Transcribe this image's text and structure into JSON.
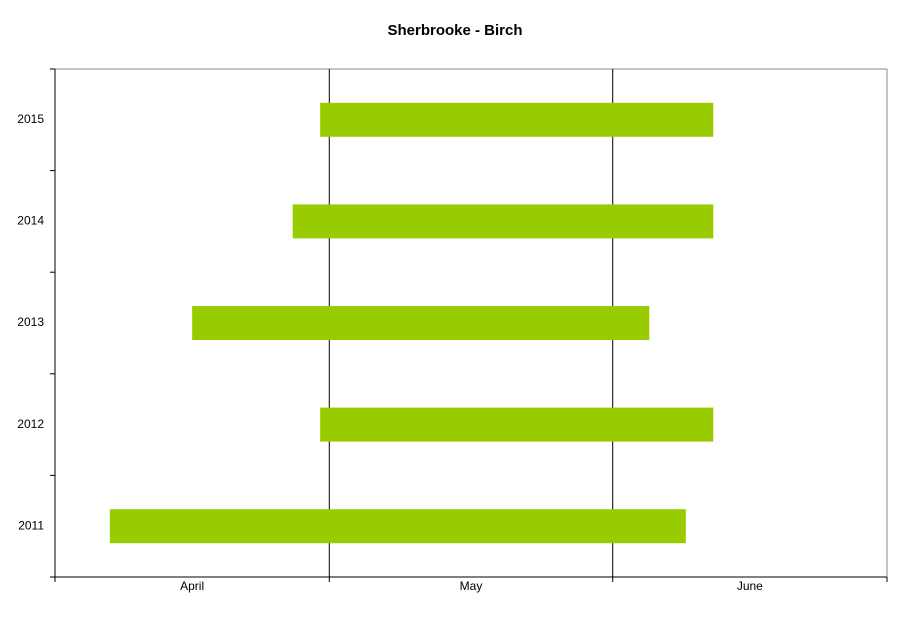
{
  "chart_data": {
    "type": "floating-bar",
    "title": "Sherbrooke - Birch",
    "categories": [
      "2011",
      "2012",
      "2013",
      "2014",
      "2015"
    ],
    "starts": [
      6,
      29,
      15,
      26,
      29
    ],
    "ends": [
      69,
      72,
      65,
      72,
      72
    ],
    "color": "#99cc00",
    "xlim": [
      0,
      91
    ],
    "xticks": [
      {
        "value": 15,
        "label": "April"
      },
      {
        "value": 45.5,
        "label": "May"
      },
      {
        "value": 76,
        "label": "June"
      }
    ],
    "xgrid": [
      0,
      30,
      61,
      91
    ]
  }
}
